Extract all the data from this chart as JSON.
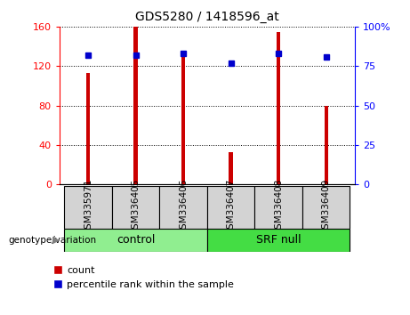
{
  "title": "GDS5280 / 1418596_at",
  "samples": [
    "GSM335971",
    "GSM336405",
    "GSM336406",
    "GSM336407",
    "GSM336408",
    "GSM336409"
  ],
  "counts": [
    113,
    160,
    130,
    33,
    155,
    80
  ],
  "percentile_ranks": [
    82,
    82,
    83,
    77,
    83,
    81
  ],
  "left_ylim": [
    0,
    160
  ],
  "left_yticks": [
    0,
    40,
    80,
    120,
    160
  ],
  "right_ylim": [
    0,
    100
  ],
  "right_yticks": [
    0,
    25,
    50,
    75,
    100
  ],
  "bar_color": "#cc0000",
  "dot_color": "#0000cc",
  "sample_box_color": "#d3d3d3",
  "control_color": "#90ee90",
  "srfnull_color": "#44dd44",
  "plot_bg": "#ffffff",
  "genotype_label": "genotype/variation",
  "legend_count": "count",
  "legend_percentile": "percentile rank within the sample",
  "bar_width": 0.08
}
